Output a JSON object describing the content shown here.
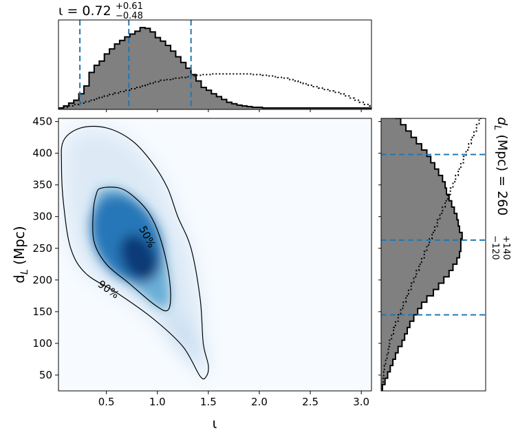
{
  "chart_data": [
    {
      "type": "heatmap",
      "panel": "joint",
      "xlabel": "ι",
      "ylabel": "d",
      "ylabel_sub": "L",
      "ylabel_rest": " (Mpc)",
      "xlim": [
        0.03,
        3.1
      ],
      "ylim": [
        25,
        455
      ],
      "x_ticks": [
        0.5,
        1.0,
        1.5,
        2.0,
        2.5,
        3.0
      ],
      "x_tick_labels": [
        "0.5",
        "1.0",
        "1.5",
        "2.0",
        "2.5",
        "3.0"
      ],
      "y_ticks": [
        50,
        100,
        150,
        200,
        250,
        300,
        350,
        400,
        450
      ],
      "y_tick_labels": [
        "50",
        "100",
        "150",
        "200",
        "250",
        "300",
        "350",
        "400",
        "450"
      ],
      "colormap": "Blues",
      "density_peak": {
        "x": 0.82,
        "y": 235
      },
      "contours": [
        {
          "level": "90%",
          "points": [
            [
              0.08,
              420
            ],
            [
              0.25,
              440
            ],
            [
              0.5,
              440
            ],
            [
              0.75,
              420
            ],
            [
              0.95,
              385
            ],
            [
              1.1,
              345
            ],
            [
              1.2,
              300
            ],
            [
              1.33,
              250
            ],
            [
              1.42,
              170
            ],
            [
              1.45,
              100
            ],
            [
              1.5,
              65
            ],
            [
              1.48,
              48
            ],
            [
              1.42,
              48
            ],
            [
              1.25,
              95
            ],
            [
              0.95,
              140
            ],
            [
              0.6,
              180
            ],
            [
              0.3,
              210
            ],
            [
              0.15,
              250
            ],
            [
              0.08,
              320
            ],
            [
              0.06,
              380
            ]
          ]
        },
        {
          "level": "50%",
          "points": [
            [
              0.45,
              345
            ],
            [
              0.63,
              345
            ],
            [
              0.78,
              330
            ],
            [
              0.92,
              305
            ],
            [
              1.02,
              270
            ],
            [
              1.1,
              220
            ],
            [
              1.13,
              175
            ],
            [
              1.1,
              152
            ],
            [
              0.98,
              160
            ],
            [
              0.72,
              195
            ],
            [
              0.5,
              225
            ],
            [
              0.38,
              260
            ],
            [
              0.37,
              305
            ],
            [
              0.4,
              335
            ]
          ]
        }
      ],
      "contour_labels": [
        {
          "text": "50%",
          "x": 0.9,
          "y": 268
        },
        {
          "text": "90%",
          "x": 0.52,
          "y": 185
        }
      ]
    },
    {
      "type": "histogram",
      "panel": "top-marginal",
      "title_value": "ι = 0.72",
      "title_sup": "+0.61",
      "title_sub": "−0.48",
      "x_edges_start": 0.03,
      "bin_width": 0.05,
      "posterior_counts": [
        2,
        5,
        9,
        13,
        22,
        33,
        52,
        62,
        68,
        78,
        85,
        92,
        97,
        102,
        106,
        110,
        115,
        114,
        109,
        101,
        96,
        90,
        82,
        74,
        66,
        58,
        49,
        40,
        31,
        27,
        22,
        18,
        14,
        10,
        8,
        6,
        5,
        4,
        3,
        3,
        2,
        2,
        2,
        2,
        2,
        2,
        2,
        2,
        2,
        2,
        2,
        2,
        2,
        2,
        2,
        2,
        2,
        2,
        2,
        2,
        2,
        2
      ],
      "prior_counts": [
        2,
        3,
        5,
        7,
        9,
        11,
        13,
        15,
        17,
        19,
        21,
        23,
        25,
        27,
        29,
        31,
        33,
        35,
        37,
        39,
        41,
        42,
        43,
        44,
        45,
        46,
        47,
        48,
        49,
        49,
        50,
        50,
        50,
        50,
        50,
        50,
        50,
        50,
        49,
        49,
        48,
        47,
        46,
        45,
        44,
        42,
        40,
        38,
        36,
        34,
        32,
        30,
        28,
        26,
        24,
        22,
        19,
        16,
        13,
        10,
        7,
        5
      ],
      "series": [
        {
          "name": "posterior",
          "style": "filled-step",
          "color": "#808080"
        },
        {
          "name": "prior",
          "style": "dotted-step",
          "color": "#000000"
        }
      ],
      "quantile_lines": [
        0.24,
        0.72,
        1.33
      ],
      "quantile_color": "#1f77b4"
    },
    {
      "type": "histogram",
      "panel": "right-marginal",
      "orientation": "horizontal",
      "side_label": "d",
      "side_label_sub": "L",
      "side_label_rest": " (Mpc) = 260",
      "side_label_sup": "+140",
      "side_label_sub2": "−120",
      "y_edges_start": 25,
      "bin_width": 10,
      "posterior_counts": [
        2,
        6,
        10,
        14,
        18,
        22,
        26,
        32,
        36,
        40,
        44,
        50,
        56,
        62,
        70,
        80,
        88,
        96,
        104,
        110,
        116,
        120,
        122,
        122,
        124,
        120,
        118,
        116,
        112,
        108,
        104,
        100,
        98,
        94,
        88,
        82,
        76,
        70,
        62,
        54,
        46,
        38,
        30,
        22,
        14
      ],
      "prior_counts": [
        2,
        3,
        4,
        5,
        7,
        9,
        11,
        13,
        16,
        19,
        22,
        26,
        30,
        34,
        38,
        42,
        46,
        50,
        54,
        58,
        62,
        66,
        70,
        74,
        78,
        82,
        86,
        90,
        94,
        98,
        102,
        106,
        110,
        114,
        118,
        122,
        126,
        130,
        134,
        138,
        142,
        146,
        150,
        154,
        158
      ],
      "series": [
        {
          "name": "posterior",
          "style": "filled-step",
          "color": "#808080"
        },
        {
          "name": "prior",
          "style": "dotted-step",
          "color": "#000000"
        }
      ],
      "quantile_lines": [
        145,
        263,
        398
      ],
      "quantile_color": "#1f77b4"
    }
  ]
}
